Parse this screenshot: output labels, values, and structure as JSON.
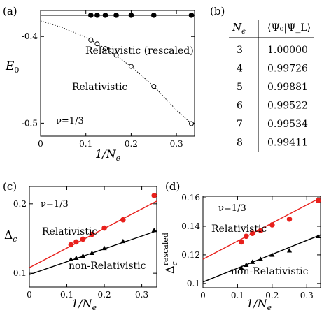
{
  "figure": {
    "panel_a": {
      "tag": "(a)",
      "ylabel": "E",
      "ylabel_sub": "0",
      "xlabel_pre": "1/N",
      "xlabel_sub": "e",
      "annotation_rescaled": "Relativistic (rescaled)",
      "annotation_rel": "Relativistic",
      "nu_label": "ν=1/3",
      "yticks": [
        "-0.4",
        "-0.5"
      ],
      "xticks": [
        "0",
        "0.1",
        "0.2",
        "0.3"
      ]
    },
    "panel_b": {
      "tag": "(b)",
      "col1_header": "N",
      "col1_header_sub": "e",
      "col2_header": "⟨Ψ₀|Ψ_L⟩",
      "rows": [
        {
          "ne": "3",
          "val": "1.00000"
        },
        {
          "ne": "4",
          "val": "0.99726"
        },
        {
          "ne": "5",
          "val": "0.99881"
        },
        {
          "ne": "6",
          "val": "0.99522"
        },
        {
          "ne": "7",
          "val": "0.99534"
        },
        {
          "ne": "8",
          "val": "0.99411"
        }
      ]
    },
    "panel_c": {
      "tag": "(c)",
      "ylabel": "Δ",
      "ylabel_sub": "c",
      "xlabel_pre": "1/N",
      "xlabel_sub": "e",
      "nu_label": "ν=1/3",
      "label_rel": "Relativistic",
      "label_nonrel": "non-Relativistic",
      "yticks": [
        "0.2",
        "0.1"
      ],
      "xticks": [
        "0",
        "0.1",
        "0.2",
        "0.3"
      ]
    },
    "panel_d": {
      "tag": "(d)",
      "ylabel": "Δ",
      "ylabel_sub": "c",
      "ylabel_sup": "rescaled",
      "xlabel_pre": "1/N",
      "xlabel_sub": "e",
      "nu_label": "ν=1/3",
      "label_rel": "Relativistic",
      "label_nonrel": "non-Relativistic",
      "yticks": [
        "0.16",
        "0.14",
        "0.12",
        "0.1"
      ],
      "xticks": [
        "0",
        "0.1",
        "0.2",
        "0.3"
      ]
    }
  },
  "chart_data": [
    {
      "type": "scatter",
      "panel": "a",
      "xlim": [
        0,
        0.34
      ],
      "ylim": [
        -0.515,
        -0.37
      ],
      "series": [
        {
          "name": "Relativistic (rescaled)",
          "marker": "filled-circle",
          "color": "#000000",
          "x": [
            0.111,
            0.125,
            0.143,
            0.167,
            0.2,
            0.25,
            0.333
          ],
          "y": [
            -0.3755,
            -0.3755,
            -0.3755,
            -0.3755,
            -0.3755,
            -0.3755,
            -0.3755
          ],
          "fit": {
            "kind": "constant",
            "value": -0.3755,
            "style": "solid"
          }
        },
        {
          "name": "Relativistic",
          "marker": "open-circle",
          "color": "#000000",
          "x": [
            0.111,
            0.125,
            0.143,
            0.167,
            0.2,
            0.25,
            0.333
          ],
          "y": [
            -0.404,
            -0.4085,
            -0.414,
            -0.4215,
            -0.4345,
            -0.4575,
            -0.5005
          ],
          "fit": {
            "kind": "quadratic",
            "x": [
              0,
              0.05,
              0.1,
              0.15,
              0.2,
              0.25,
              0.3,
              0.333
            ],
            "y": [
              -0.382,
              -0.39,
              -0.401,
              -0.416,
              -0.4345,
              -0.4575,
              -0.485,
              -0.5005
            ],
            "style": "dotted"
          }
        }
      ]
    },
    {
      "type": "table",
      "panel": "b",
      "columns": [
        "N_e",
        "⟨Ψ0|ΨL⟩"
      ],
      "rows": [
        [
          "3",
          "1.00000"
        ],
        [
          "4",
          "0.99726"
        ],
        [
          "5",
          "0.99881"
        ],
        [
          "6",
          "0.99522"
        ],
        [
          "7",
          "0.99534"
        ],
        [
          "8",
          "0.99411"
        ]
      ]
    },
    {
      "type": "scatter",
      "panel": "c",
      "xlim": [
        0,
        0.34
      ],
      "ylim": [
        0.08,
        0.225
      ],
      "series": [
        {
          "name": "Relativistic",
          "marker": "filled-circle",
          "color": "#e8201c",
          "x": [
            0.111,
            0.125,
            0.143,
            0.167,
            0.2,
            0.25,
            0.333
          ],
          "y": [
            0.141,
            0.145,
            0.149,
            0.156,
            0.165,
            0.177,
            0.212
          ],
          "fit": {
            "x": [
              0,
              0.34
            ],
            "y": [
              0.108,
              0.204
            ]
          }
        },
        {
          "name": "non-Relativistic",
          "marker": "filled-triangle",
          "color": "#000000",
          "x": [
            0.111,
            0.125,
            0.143,
            0.167,
            0.2,
            0.25,
            0.333
          ],
          "y": [
            0.12,
            0.122,
            0.125,
            0.129,
            0.136,
            0.146,
            0.162
          ],
          "fit": {
            "x": [
              0,
              0.34
            ],
            "y": [
              0.098,
              0.161
            ]
          }
        }
      ]
    },
    {
      "type": "scatter",
      "panel": "d",
      "xlim": [
        0,
        0.34
      ],
      "ylim": [
        0.097,
        0.161
      ],
      "series": [
        {
          "name": "Relativistic",
          "marker": "filled-circle",
          "color": "#e8201c",
          "x": [
            0.111,
            0.125,
            0.143,
            0.167,
            0.2,
            0.25,
            0.333
          ],
          "y": [
            0.129,
            0.133,
            0.135,
            0.137,
            0.141,
            0.145,
            0.158
          ],
          "fit": {
            "x": [
              0,
              0.34
            ],
            "y": [
              0.117,
              0.16
            ]
          }
        },
        {
          "name": "non-Relativistic",
          "marker": "filled-triangle",
          "color": "#000000",
          "x": [
            0.111,
            0.125,
            0.143,
            0.167,
            0.2,
            0.25,
            0.333
          ],
          "y": [
            0.111,
            0.113,
            0.115,
            0.117,
            0.12,
            0.123,
            0.133
          ],
          "fit": {
            "x": [
              0,
              0.34
            ],
            "y": [
              0.101,
              0.134
            ]
          }
        }
      ]
    }
  ]
}
